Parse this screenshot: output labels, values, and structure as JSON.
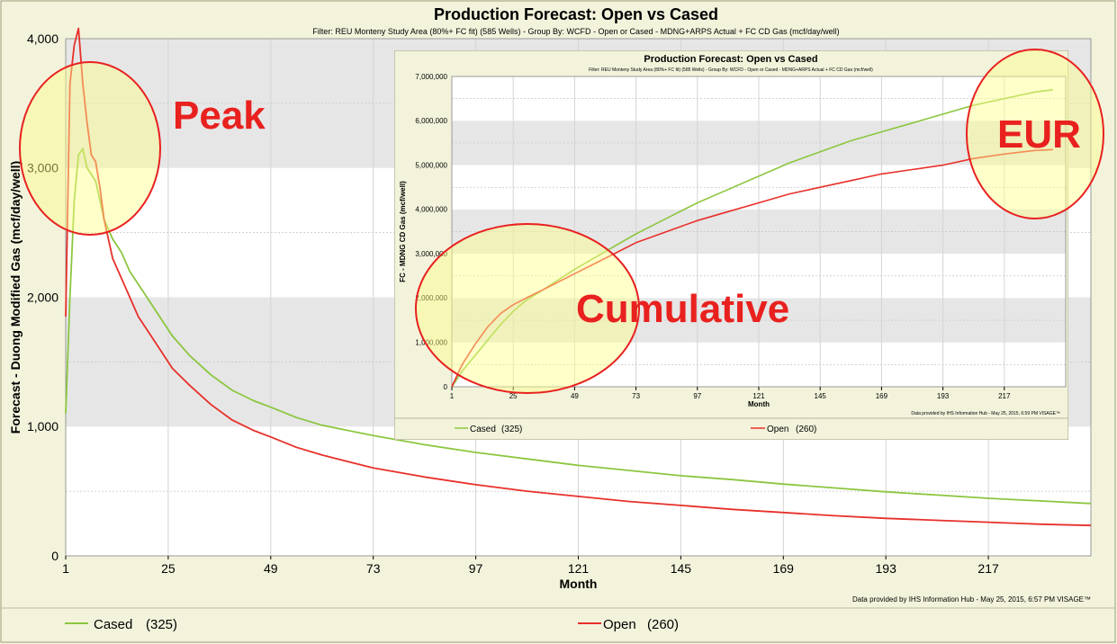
{
  "main": {
    "title": "Production Forecast: Open vs Cased",
    "filter": "Filter: REU Monteny Study Area (80%+ FC fit) (585 Wells) - Group By: WCFD - Open or Cased - MDNG+ARPS Actual + FC CD Gas (mcf/day/well)",
    "credit": "Data provided by IHS Information Hub - May 25, 2015, 6:57 PM VISAGE™",
    "legend": [
      {
        "label": "Cased",
        "count": "(325)",
        "color": "#8cc63f"
      },
      {
        "label": "Open",
        "count": "(260)",
        "color": "#e8302a"
      }
    ]
  },
  "inset": {
    "title": "Production Forecast: Open vs Cased",
    "filter": "Filter: REU Monteny Study Area (80%+ FC fit) (585 Wells) - Group By: WCFD - Open or Cased - MDNG+ARPS Actual + FC CD Gas (mcf/well)",
    "credit": "Data provided by IHS Information Hub - May 25, 2015, 6:59 PM VISAGE™",
    "legend": [
      {
        "label": "Cased",
        "count": "(325)",
        "color": "#8cc63f"
      },
      {
        "label": "Open",
        "count": "(260)",
        "color": "#e8302a"
      }
    ]
  },
  "annotations": {
    "peak": "Peak",
    "eur": "EUR",
    "cumulative": "Cumulative",
    "circle_color": "#e8211f",
    "circle_fill": "#ffff88"
  },
  "chart_data": [
    {
      "type": "line",
      "title": "Production Forecast: Open vs Cased",
      "xlabel": "Month",
      "ylabel": "Forecast - Duong Modified Gas (mcf/day/well)",
      "xlim": [
        1,
        241
      ],
      "ylim": [
        0,
        4000
      ],
      "xticks": [
        "1",
        "25",
        "49",
        "73",
        "97",
        "121",
        "145",
        "169",
        "193",
        "217"
      ],
      "yticks": [
        "0",
        "1,000",
        "2,000",
        "3,000",
        "4,000"
      ],
      "grid": true,
      "legend_position": "bottom",
      "series": [
        {
          "name": "Cased",
          "color": "#8cc63f",
          "points": [
            [
              1,
              1100
            ],
            [
              2,
              2000
            ],
            [
              3,
              2750
            ],
            [
              4,
              3100
            ],
            [
              5,
              3150
            ],
            [
              6,
              3000
            ],
            [
              7,
              2950
            ],
            [
              8,
              2900
            ],
            [
              9,
              2750
            ],
            [
              10,
              2600
            ],
            [
              12,
              2450
            ],
            [
              14,
              2350
            ],
            [
              16,
              2200
            ],
            [
              18,
              2100
            ],
            [
              20,
              2000
            ],
            [
              23,
              1850
            ],
            [
              26,
              1700
            ],
            [
              30,
              1550
            ],
            [
              35,
              1400
            ],
            [
              40,
              1280
            ],
            [
              45,
              1200
            ],
            [
              49,
              1150
            ],
            [
              55,
              1070
            ],
            [
              61,
              1010
            ],
            [
              73,
              930
            ],
            [
              85,
              860
            ],
            [
              97,
              800
            ],
            [
              109,
              750
            ],
            [
              121,
              700
            ],
            [
              133,
              660
            ],
            [
              145,
              620
            ],
            [
              157,
              590
            ],
            [
              169,
              555
            ],
            [
              181,
              525
            ],
            [
              193,
              495
            ],
            [
              205,
              470
            ],
            [
              217,
              445
            ],
            [
              229,
              425
            ],
            [
              241,
              405
            ]
          ]
        },
        {
          "name": "Open",
          "color": "#e8302a",
          "points": [
            [
              1,
              1850
            ],
            [
              2,
              3650
            ],
            [
              3,
              3950
            ],
            [
              4,
              4080
            ],
            [
              5,
              3650
            ],
            [
              6,
              3350
            ],
            [
              7,
              3100
            ],
            [
              8,
              3050
            ],
            [
              9,
              2850
            ],
            [
              10,
              2600
            ],
            [
              12,
              2300
            ],
            [
              14,
              2150
            ],
            [
              16,
              2000
            ],
            [
              18,
              1850
            ],
            [
              20,
              1750
            ],
            [
              23,
              1600
            ],
            [
              26,
              1450
            ],
            [
              30,
              1320
            ],
            [
              35,
              1170
            ],
            [
              40,
              1050
            ],
            [
              45,
              970
            ],
            [
              49,
              920
            ],
            [
              55,
              840
            ],
            [
              61,
              780
            ],
            [
              73,
              680
            ],
            [
              85,
              610
            ],
            [
              97,
              550
            ],
            [
              109,
              500
            ],
            [
              121,
              460
            ],
            [
              133,
              420
            ],
            [
              145,
              390
            ],
            [
              157,
              360
            ],
            [
              169,
              335
            ],
            [
              181,
              310
            ],
            [
              193,
              290
            ],
            [
              205,
              275
            ],
            [
              217,
              260
            ],
            [
              229,
              245
            ],
            [
              241,
              235
            ]
          ]
        }
      ]
    },
    {
      "type": "line",
      "title": "Production Forecast: Open vs Cased",
      "xlabel": "Month",
      "ylabel": "FC - MDNG CD Gas (mcf/well)",
      "xlim": [
        1,
        241
      ],
      "ylim": [
        0,
        7000000
      ],
      "xticks": [
        "1",
        "25",
        "49",
        "73",
        "97",
        "121",
        "145",
        "169",
        "193",
        "217"
      ],
      "yticks": [
        "0",
        "1,000,000",
        "2,000,000",
        "3,000,000",
        "4,000,000",
        "5,000,000",
        "6,000,000",
        "7,000,000"
      ],
      "grid": true,
      "legend_position": "bottom",
      "series": [
        {
          "name": "Cased",
          "color": "#8cc63f",
          "points": [
            [
              1,
              0
            ],
            [
              5,
              350000
            ],
            [
              10,
              700000
            ],
            [
              15,
              1050000
            ],
            [
              20,
              1400000
            ],
            [
              25,
              1700000
            ],
            [
              30,
              1950000
            ],
            [
              37,
              2200000
            ],
            [
              49,
              2650000
            ],
            [
              61,
              3050000
            ],
            [
              73,
              3450000
            ],
            [
              85,
              3800000
            ],
            [
              97,
              4150000
            ],
            [
              109,
              4450000
            ],
            [
              121,
              4750000
            ],
            [
              133,
              5050000
            ],
            [
              145,
              5300000
            ],
            [
              157,
              5550000
            ],
            [
              169,
              5750000
            ],
            [
              181,
              5950000
            ],
            [
              193,
              6150000
            ],
            [
              205,
              6350000
            ],
            [
              217,
              6500000
            ],
            [
              229,
              6650000
            ],
            [
              236,
              6700000
            ]
          ]
        },
        {
          "name": "Open",
          "color": "#e8302a",
          "points": [
            [
              1,
              0
            ],
            [
              5,
              500000
            ],
            [
              10,
              950000
            ],
            [
              15,
              1350000
            ],
            [
              20,
              1650000
            ],
            [
              25,
              1850000
            ],
            [
              30,
              2000000
            ],
            [
              37,
              2200000
            ],
            [
              49,
              2550000
            ],
            [
              61,
              2900000
            ],
            [
              73,
              3250000
            ],
            [
              85,
              3500000
            ],
            [
              97,
              3750000
            ],
            [
              109,
              3950000
            ],
            [
              121,
              4150000
            ],
            [
              133,
              4350000
            ],
            [
              145,
              4500000
            ],
            [
              157,
              4650000
            ],
            [
              169,
              4800000
            ],
            [
              181,
              4900000
            ],
            [
              193,
              5000000
            ],
            [
              205,
              5150000
            ],
            [
              217,
              5250000
            ],
            [
              229,
              5330000
            ],
            [
              236,
              5350000
            ]
          ]
        }
      ]
    }
  ]
}
